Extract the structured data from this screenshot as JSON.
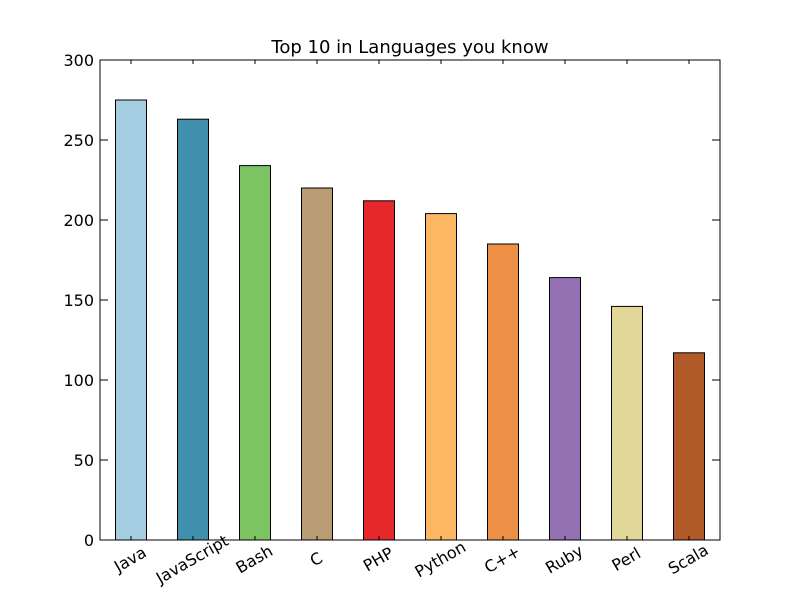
{
  "chart_data": {
    "type": "bar",
    "title": "Top 10 in Languages you know",
    "xlabel": "",
    "ylabel": "",
    "categories": [
      "Java",
      "JavaScript",
      "Bash",
      "C",
      "PHP",
      "Python",
      "C++",
      "Ruby",
      "Perl",
      "Scala"
    ],
    "values": [
      275,
      263,
      234,
      220,
      212,
      204,
      185,
      164,
      146,
      117
    ],
    "colors": [
      "#a6cee3",
      "#3f8fad",
      "#7cc462",
      "#b99b74",
      "#e5292a",
      "#fdb762",
      "#ed9046",
      "#9471b3",
      "#e0d798",
      "#b05a28"
    ],
    "ylim": [
      0,
      300
    ],
    "yticks": [
      0,
      50,
      100,
      150,
      200,
      250,
      300
    ],
    "grid": false,
    "legend": "none"
  }
}
